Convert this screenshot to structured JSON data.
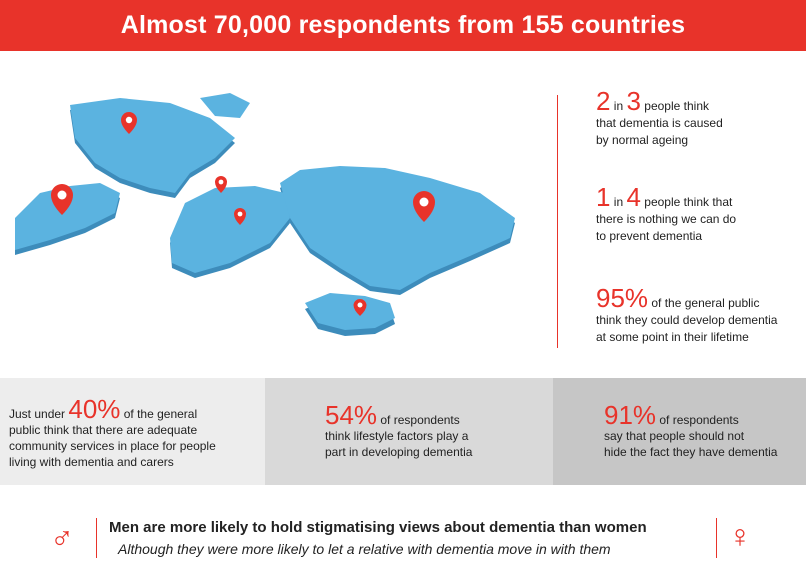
{
  "header": {
    "title": "Almost 70,000 respondents from 155 countries"
  },
  "stats": [
    {
      "big1": "2",
      "small1": " in ",
      "big2": "3",
      "rest": " people think",
      "line2": "that dementia is caused",
      "line3": "by normal ageing"
    },
    {
      "big1": "1",
      "small1": " in ",
      "big2": "4",
      "rest": " people think that",
      "line2": "there is nothing we can do",
      "line3": "to prevent dementia"
    },
    {
      "big1": "95%",
      "rest": " of the general public",
      "line2": "think they could develop dementia",
      "line3": "at some point in their lifetime"
    }
  ],
  "boxes": [
    {
      "pre": "Just under ",
      "big": "40%",
      "rest": " of the general",
      "line2": "public think that there are adequate",
      "line3": "community services in place for people",
      "line4": "living with dementia and carers"
    },
    {
      "big": "54%",
      "rest": " of respondents",
      "line2": "think lifestyle factors play a",
      "line3": "part in developing dementia"
    },
    {
      "big": "91%",
      "rest": " of respondents",
      "line2": "say that people should not",
      "line3": "hide the fact they have dementia"
    }
  ],
  "footer": {
    "line1": "Men are more likely to hold stigmatising views about dementia than women",
    "line2": "Although they were more likely to let a relative with dementia move in with them",
    "male_symbol": "♂",
    "female_symbol": "♀"
  },
  "colors": {
    "accent": "#e8332a",
    "map": "#5bb3e0",
    "map_side": "#3f8fbd"
  },
  "icons": [
    "map-pin-icon",
    "male-symbol-icon",
    "female-symbol-icon"
  ]
}
